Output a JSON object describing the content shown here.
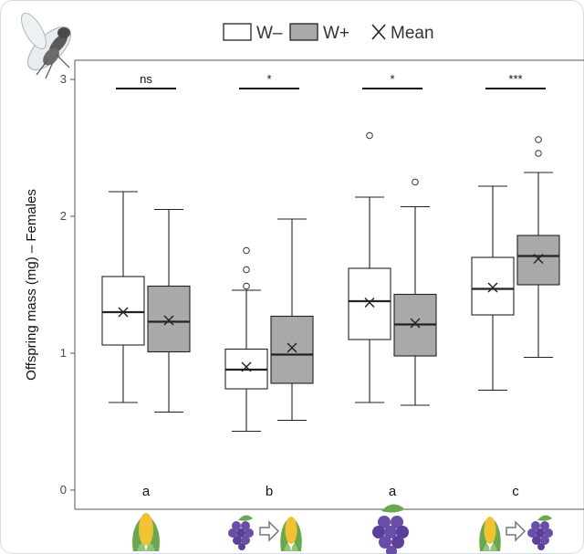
{
  "chart_data": {
    "type": "boxplot",
    "ylabel": "Offspring mass (mg) – Females",
    "ylim": [
      0,
      3
    ],
    "yticks": [
      "0",
      "1",
      "2",
      "3"
    ],
    "grid": false,
    "legend": {
      "placement": "top",
      "entries": [
        "W–",
        "W+"
      ],
      "mean_label": "Mean",
      "colors": {
        "W-": "#ffffff",
        "W+": "#a9a9a9"
      }
    },
    "groups": [
      {
        "icon": "corn-icon",
        "letter": "a",
        "significance": "ns",
        "boxes": [
          {
            "series": "W-",
            "min": 0.64,
            "q1": 1.06,
            "median": 1.3,
            "q3": 1.56,
            "max": 2.18,
            "mean": 1.3,
            "outliers": []
          },
          {
            "series": "W+",
            "min": 0.57,
            "q1": 1.01,
            "median": 1.23,
            "q3": 1.49,
            "max": 2.05,
            "mean": 1.24,
            "outliers": []
          }
        ]
      },
      {
        "icon": "grape-to-corn-icon",
        "letter": "b",
        "significance": "*",
        "boxes": [
          {
            "series": "W-",
            "min": 0.43,
            "q1": 0.74,
            "median": 0.88,
            "q3": 1.03,
            "max": 1.46,
            "mean": 0.9,
            "outliers": [
              1.49,
              1.61,
              1.75
            ]
          },
          {
            "series": "W+",
            "min": 0.51,
            "q1": 0.78,
            "median": 0.99,
            "q3": 1.27,
            "max": 1.98,
            "mean": 1.04,
            "outliers": []
          }
        ]
      },
      {
        "icon": "grape-icon",
        "letter": "a",
        "significance": "*",
        "boxes": [
          {
            "series": "W-",
            "min": 0.64,
            "q1": 1.1,
            "median": 1.38,
            "q3": 1.62,
            "max": 2.14,
            "mean": 1.37,
            "outliers": [
              2.59
            ]
          },
          {
            "series": "W+",
            "min": 0.62,
            "q1": 0.98,
            "median": 1.21,
            "q3": 1.43,
            "max": 2.07,
            "mean": 1.22,
            "outliers": [
              2.25
            ]
          }
        ]
      },
      {
        "icon": "corn-to-grape-icon",
        "letter": "c",
        "significance": "***",
        "boxes": [
          {
            "series": "W-",
            "min": 0.73,
            "q1": 1.28,
            "median": 1.47,
            "q3": 1.7,
            "max": 2.22,
            "mean": 1.48,
            "outliers": []
          },
          {
            "series": "W+",
            "min": 0.97,
            "q1": 1.5,
            "median": 1.71,
            "q3": 1.86,
            "max": 2.32,
            "mean": 1.69,
            "outliers": [
              2.46,
              2.56
            ]
          }
        ]
      }
    ]
  }
}
